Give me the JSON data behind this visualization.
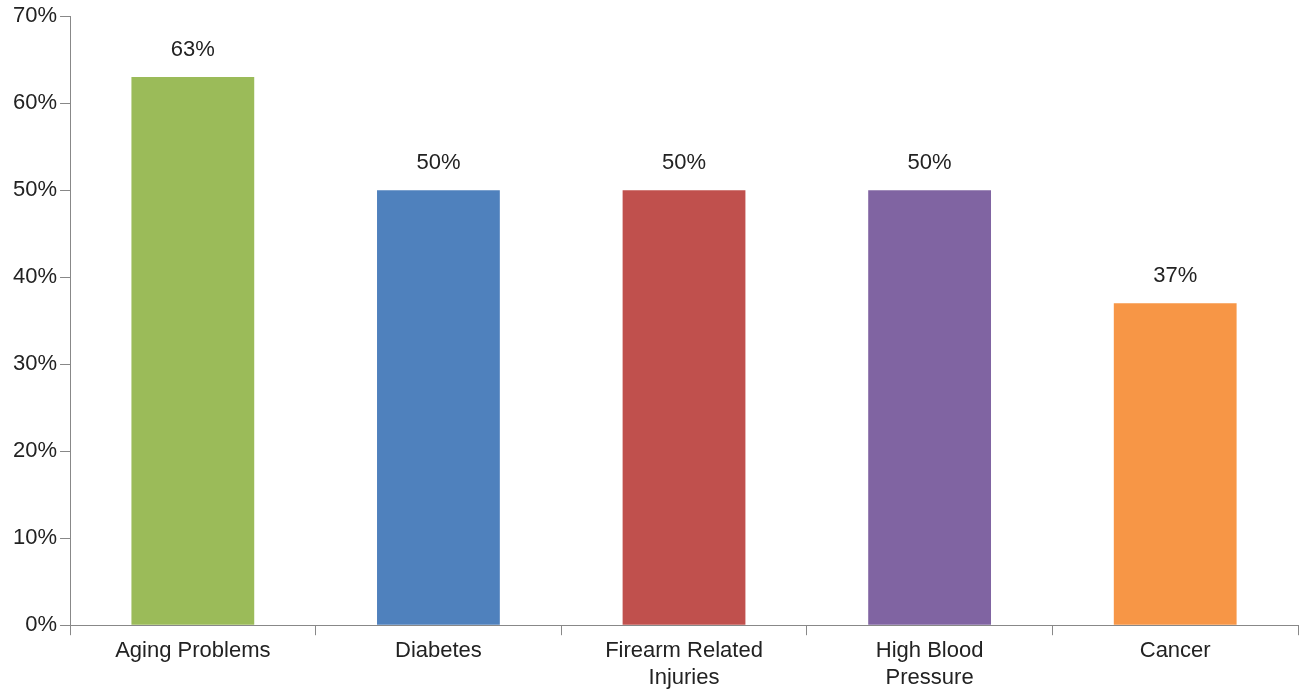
{
  "chart_data": {
    "type": "bar",
    "categories": [
      "Aging Problems",
      "Diabetes",
      "Firearm Related Injuries",
      "High Blood Pressure",
      "Cancer"
    ],
    "values": [
      63,
      50,
      50,
      50,
      37
    ],
    "colors": [
      "#9bbb59",
      "#4f81bd",
      "#c0504d",
      "#8064a2",
      "#f79646"
    ],
    "value_labels": [
      "63%",
      "50%",
      "50%",
      "50%",
      "37%"
    ],
    "ylim": [
      0,
      70
    ],
    "yticks": [
      {
        "value": 0,
        "label": "0%"
      },
      {
        "value": 10,
        "label": "10%"
      },
      {
        "value": 20,
        "label": "20%"
      },
      {
        "value": 30,
        "label": "30%"
      },
      {
        "value": 40,
        "label": "40%"
      },
      {
        "value": 50,
        "label": "50%"
      },
      {
        "value": 60,
        "label": "60%"
      },
      {
        "value": 70,
        "label": "70%"
      }
    ],
    "legend": false
  }
}
